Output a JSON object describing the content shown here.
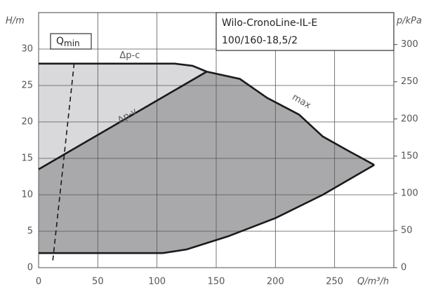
{
  "chart_data": {
    "type": "line",
    "title_lines": [
      "Wilo-CronoLine-IL-E",
      "100/160-18,5/2"
    ],
    "x_label": "Q/m³/h",
    "y_label": "H/m",
    "y2_label": "p/kPa",
    "qmin_label": {
      "main": "Q",
      "sub": "min"
    },
    "xlim": [
      0,
      300
    ],
    "ylim": [
      0,
      35
    ],
    "y2lim": [
      0,
      343
    ],
    "xticks": [
      0,
      50,
      100,
      150,
      200,
      250
    ],
    "yticks": [
      0,
      5,
      10,
      15,
      20,
      25,
      30
    ],
    "y2ticks": [
      0,
      50,
      100,
      150,
      200,
      250,
      300
    ],
    "grid": true,
    "area_colors": {
      "light": "#d9d9db",
      "dark": "#a9a9ab"
    },
    "series": [
      {
        "name": "Δp-c",
        "color": "#1a1a1a",
        "x": [
          0,
          115,
          130,
          142
        ],
        "values": [
          28,
          28,
          27.7,
          26.9
        ]
      },
      {
        "name": "Δp-v",
        "color": "#1a1a1a",
        "x": [
          0,
          142
        ],
        "values": [
          13.5,
          26.9
        ]
      },
      {
        "name": "max",
        "color": "#1a1a1a",
        "x": [
          142,
          170,
          193,
          220,
          240,
          262,
          283.5
        ],
        "values": [
          26.9,
          25.9,
          23.3,
          21,
          18,
          16,
          14.1
        ]
      },
      {
        "color": "#1a1a1a",
        "x": [
          0,
          105,
          125,
          160,
          200,
          240,
          283.5
        ],
        "values": [
          2,
          2,
          2.5,
          4.3,
          6.8,
          10,
          14.1
        ]
      },
      {
        "color": "#1a1a1a",
        "dashed": true,
        "x": [
          12,
          30
        ],
        "values": [
          1,
          28
        ]
      }
    ]
  }
}
